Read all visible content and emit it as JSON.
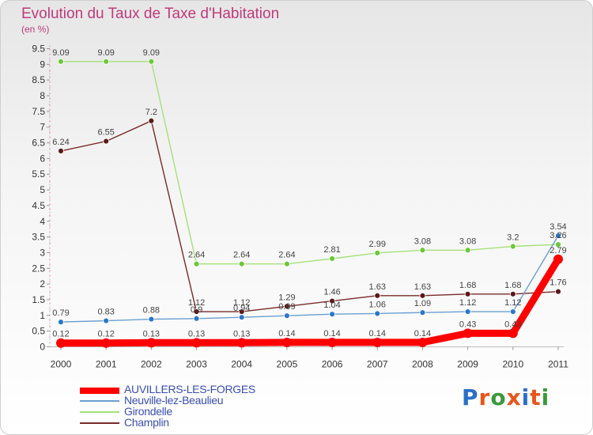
{
  "header": {
    "title": "Evolution du Taux de Taxe d'Habitation",
    "subtitle": "(en %)"
  },
  "brand": {
    "logo_text": "Proxiti",
    "letter_colors": [
      "#2a6fc9",
      "#e8551b",
      "#3a9a3a",
      "#e8551b",
      "#2a6fc9",
      "#e8551b",
      "#3a9a3a"
    ]
  },
  "chart_data": {
    "type": "line",
    "title": "Evolution du Taux de Taxe d'Habitation",
    "subtitle": "(en %)",
    "xlabel": "",
    "ylabel": "",
    "x": [
      "2000",
      "2001",
      "2002",
      "2003",
      "2004",
      "2005",
      "2006",
      "2007",
      "2008",
      "2009",
      "2010",
      "2011"
    ],
    "ylim": [
      0,
      9.5
    ],
    "yticks": [
      "0",
      "0.5",
      "1",
      "1.5",
      "2",
      "2.5",
      "3",
      "3.5",
      "4",
      "4.5",
      "5",
      "5.5",
      "6",
      "6.5",
      "7",
      "7.5",
      "8",
      "8.5",
      "9",
      "9.5"
    ],
    "grid": false,
    "legend_position": "bottom-left",
    "series": [
      {
        "name": "AUVILLERS-LES-FORGES",
        "color": "#ff0000",
        "values": [
          0.12,
          0.12,
          0.13,
          0.13,
          0.13,
          0.14,
          0.14,
          0.14,
          0.14,
          0.43,
          0.43,
          2.79
        ],
        "labels": [
          "0.12",
          "0.12",
          "0.13",
          "0.13",
          "0.13",
          "0.14",
          "0.14",
          "0.14",
          "0.14",
          "0.43",
          "0.43",
          "2.79"
        ]
      },
      {
        "name": "Neuville-lez-Beaulieu",
        "color": "#6a9fd0",
        "values": [
          0.79,
          0.83,
          0.88,
          0.9,
          0.94,
          0.99,
          1.04,
          1.06,
          1.09,
          1.12,
          1.12,
          3.54
        ],
        "labels": [
          "0.79",
          "0.83",
          "0.88",
          "0.9",
          "0.94",
          "0.99",
          "1.04",
          "1.06",
          "1.09",
          "1.12",
          "1.12",
          "3.54"
        ]
      },
      {
        "name": "Girondelle",
        "color": "#a6e07a",
        "values": [
          9.09,
          9.09,
          9.09,
          2.64,
          2.64,
          2.64,
          2.81,
          2.99,
          3.08,
          3.08,
          3.2,
          3.26
        ],
        "labels": [
          "9.09",
          "9.09",
          "9.09",
          "2.64",
          "2.64",
          "2.64",
          "2.81",
          "2.99",
          "3.08",
          "3.08",
          "3.2",
          "3.26"
        ]
      },
      {
        "name": "Champlin",
        "color": "#7a2a2a",
        "values": [
          6.24,
          6.55,
          7.2,
          1.12,
          1.12,
          1.29,
          1.46,
          1.63,
          1.63,
          1.68,
          1.68,
          1.76
        ],
        "labels": [
          "6.24",
          "6.55",
          "7.2",
          "1.12",
          "1.12",
          "1.29",
          "1.46",
          "1.63",
          "1.63",
          "1.68",
          "1.68",
          "1.76"
        ]
      }
    ]
  }
}
